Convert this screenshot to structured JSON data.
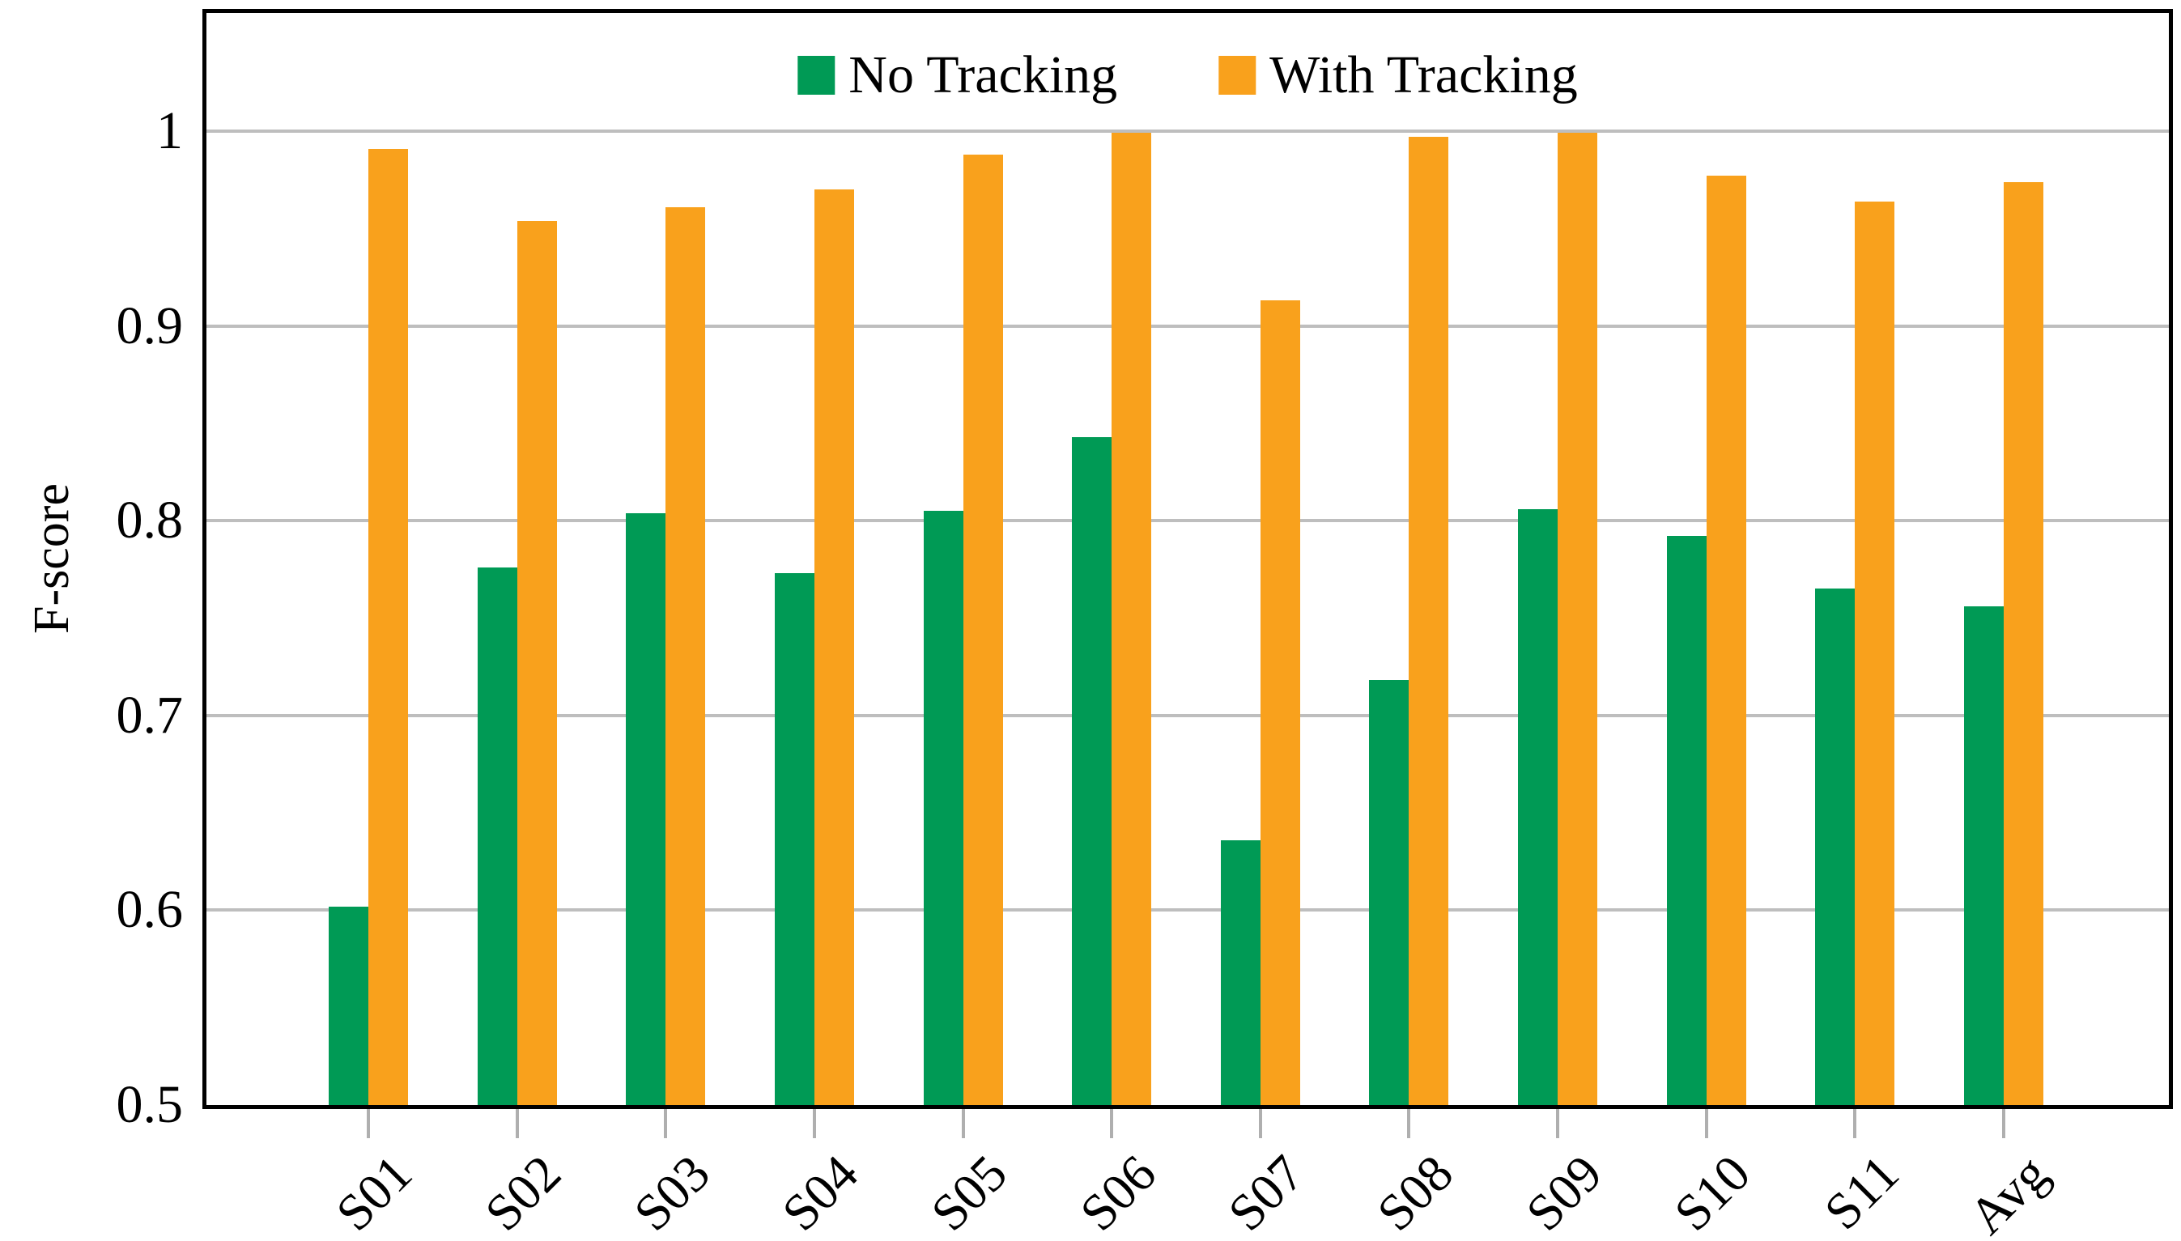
{
  "chart_data": {
    "type": "bar",
    "title": "",
    "ylabel": "F-score",
    "categories": [
      "S01",
      "S02",
      "S03",
      "S04",
      "S05",
      "S06",
      "S07",
      "S08",
      "S09",
      "S10",
      "S11",
      "Avg"
    ],
    "series": [
      {
        "name": "No Tracking",
        "color": "#009A55",
        "values": [
          0.602,
          0.776,
          0.804,
          0.773,
          0.805,
          0.843,
          0.636,
          0.718,
          0.806,
          0.792,
          0.765,
          0.756
        ]
      },
      {
        "name": "With Tracking",
        "color": "#F9A11C",
        "values": [
          0.991,
          0.954,
          0.961,
          0.97,
          0.988,
          0.999,
          0.913,
          0.997,
          0.999,
          0.977,
          0.964,
          0.974
        ]
      }
    ],
    "ylim": [
      0.5,
      1.063
    ],
    "yticks": {
      "values": [
        0.5,
        0.6,
        0.7,
        0.8,
        0.9,
        1.0
      ],
      "labels": [
        "0.5",
        "0.6",
        "0.7",
        "0.8",
        "0.9",
        "1"
      ]
    },
    "grid": "horizontal",
    "gridline_color": "#BEBEBE",
    "xtick_color": "#AFAFAF",
    "axis_color": "#000000",
    "legend_position": "top-center-inside"
  }
}
